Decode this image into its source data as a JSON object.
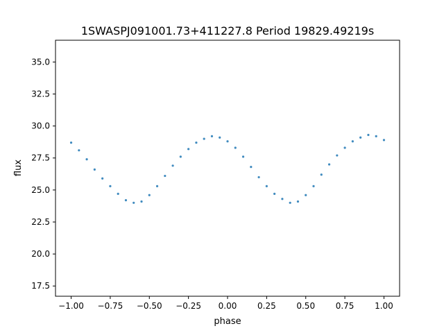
{
  "chart_data": {
    "type": "scatter",
    "title": "1SWASPJ091001.73+411227.8 Period 19829.49219s",
    "xlabel": "phase",
    "ylabel": "flux",
    "xlim": [
      -1.1,
      1.1
    ],
    "ylim": [
      16.7,
      36.7
    ],
    "x_ticks": [
      -1.0,
      -0.75,
      -0.5,
      -0.25,
      0.0,
      0.25,
      0.5,
      0.75,
      1.0
    ],
    "x_tick_labels": [
      "−1.00",
      "−0.75",
      "−0.50",
      "−0.25",
      "0.00",
      "0.25",
      "0.50",
      "0.75",
      "1.00"
    ],
    "y_ticks": [
      17.5,
      20.0,
      22.5,
      25.0,
      27.5,
      30.0,
      32.5,
      35.0
    ],
    "y_tick_labels": [
      "17.5",
      "20.0",
      "22.5",
      "25.0",
      "27.5",
      "30.0",
      "32.5",
      "35.0"
    ],
    "grid": false,
    "legend": "none",
    "marker_color": "#1f77b4",
    "series": [
      {
        "x": [
          -1.0,
          -0.95,
          -0.9,
          -0.85,
          -0.8,
          -0.75,
          -0.7,
          -0.65,
          -0.6,
          -0.55,
          -0.5,
          -0.45,
          -0.4,
          -0.35,
          -0.3,
          -0.25,
          -0.2,
          -0.15,
          -0.1,
          -0.05,
          0.0,
          0.05,
          0.1,
          0.15,
          0.2,
          0.25,
          0.3,
          0.35,
          0.4,
          0.45,
          0.5,
          0.55,
          0.6,
          0.65,
          0.7,
          0.75,
          0.8,
          0.85,
          0.9,
          0.95,
          1.0
        ],
        "y": [
          28.7,
          28.1,
          27.4,
          26.6,
          25.9,
          25.3,
          24.7,
          24.2,
          24.0,
          24.1,
          24.6,
          25.3,
          26.1,
          26.9,
          27.6,
          28.2,
          28.7,
          29.0,
          29.2,
          29.1,
          28.8,
          28.3,
          27.6,
          26.8,
          26.0,
          25.3,
          24.7,
          24.3,
          24.0,
          24.1,
          24.6,
          25.3,
          26.2,
          27.0,
          27.7,
          28.3,
          28.8,
          29.1,
          29.3,
          29.2,
          28.9
        ]
      }
    ]
  }
}
